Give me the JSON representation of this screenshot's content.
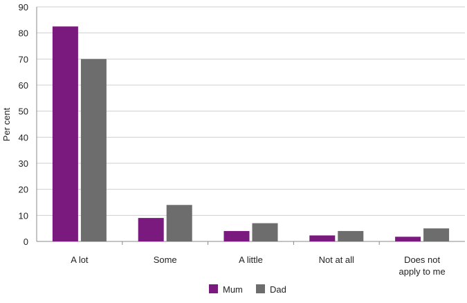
{
  "chart_data": {
    "type": "bar",
    "title": "",
    "xlabel": "",
    "ylabel": "Per cent",
    "ylim": [
      0,
      90
    ],
    "yticks": [
      0,
      10,
      20,
      30,
      40,
      50,
      60,
      70,
      80,
      90
    ],
    "grid": true,
    "legend_position": "bottom",
    "categories": [
      [
        "A lot"
      ],
      [
        "Some"
      ],
      [
        "A little"
      ],
      [
        "Not at all"
      ],
      [
        "Does not",
        "apply to me"
      ]
    ],
    "series": [
      {
        "name": "Mum",
        "color": "#7b1a7e",
        "values": [
          82.5,
          9,
          4,
          2.3,
          1.8
        ]
      },
      {
        "name": "Dad",
        "color": "#6d6d6d",
        "values": [
          70,
          14,
          7,
          4,
          5
        ]
      }
    ]
  }
}
